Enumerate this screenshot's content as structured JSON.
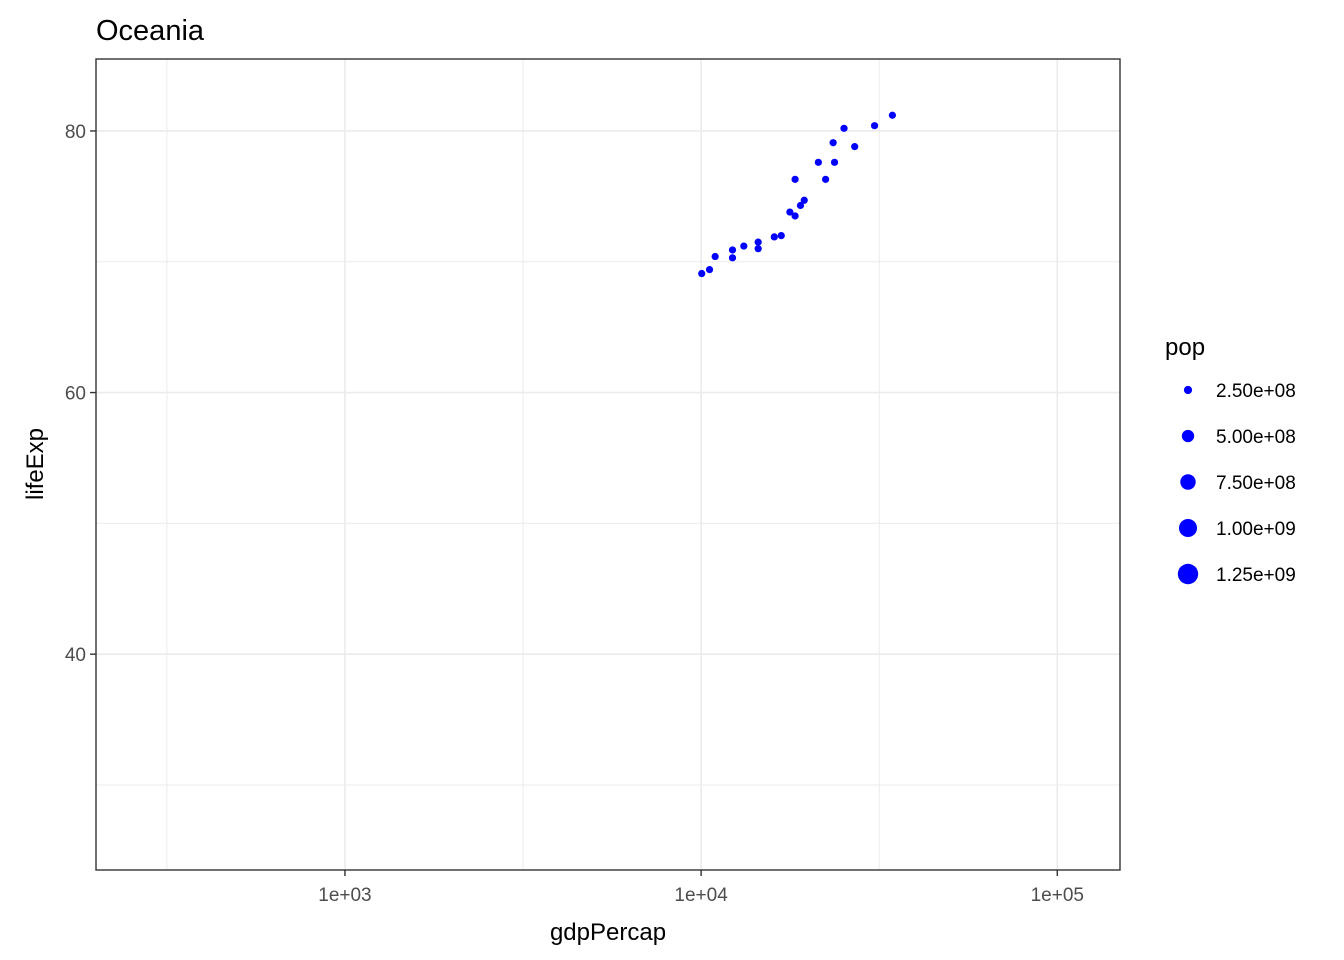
{
  "chart_data": {
    "type": "scatter",
    "title": "Oceania",
    "xlabel": "gdpPercap",
    "ylabel": "lifeExp",
    "x_scale": "log10",
    "xlim": [
      200,
      150000
    ],
    "ylim": [
      23.5,
      85.5
    ],
    "x_ticks": [
      1000,
      10000,
      100000
    ],
    "x_tick_labels": [
      "1e+03",
      "1e+04",
      "1e+05"
    ],
    "y_ticks": [
      40,
      60,
      80
    ],
    "y_tick_labels": [
      "40",
      "60",
      "80"
    ],
    "grid": true,
    "legend": {
      "title": "pop",
      "position": "right",
      "entries": [
        {
          "label": "2.50e+08",
          "value": 250000000
        },
        {
          "label": "5.00e+08",
          "value": 500000000
        },
        {
          "label": "7.50e+08",
          "value": 750000000
        },
        {
          "label": "1.00e+09",
          "value": 1000000000
        },
        {
          "label": "1.25e+09",
          "value": 1250000000
        }
      ]
    },
    "point_color": "#0000ff",
    "series": [
      {
        "points": [
          {
            "x": 10040,
            "y": 69.1,
            "pop": 8700000
          },
          {
            "x": 10560,
            "y": 69.4,
            "pop": 9700000
          },
          {
            "x": 10950,
            "y": 70.4,
            "pop": 2300000
          },
          {
            "x": 12250,
            "y": 70.3,
            "pop": 2500000
          },
          {
            "x": 12250,
            "y": 70.9,
            "pop": 10900000
          },
          {
            "x": 13180,
            "y": 71.2,
            "pop": 2700000
          },
          {
            "x": 14460,
            "y": 71.0,
            "pop": 12000000
          },
          {
            "x": 14460,
            "y": 71.5,
            "pop": 3100000
          },
          {
            "x": 16050,
            "y": 71.9,
            "pop": 3200000
          },
          {
            "x": 16790,
            "y": 72.0,
            "pop": 13200000
          },
          {
            "x": 17750,
            "y": 73.8,
            "pop": 14100000
          },
          {
            "x": 18360,
            "y": 73.5,
            "pop": 15200000
          },
          {
            "x": 18360,
            "y": 76.3,
            "pop": 3400000
          },
          {
            "x": 19010,
            "y": 74.3,
            "pop": 3300000
          },
          {
            "x": 19480,
            "y": 74.7,
            "pop": 16300000
          },
          {
            "x": 21340,
            "y": 77.6,
            "pop": 3700000
          },
          {
            "x": 22360,
            "y": 76.3,
            "pop": 17500000
          },
          {
            "x": 23480,
            "y": 79.1,
            "pop": 3900000
          },
          {
            "x": 23690,
            "y": 77.6,
            "pop": 18600000
          },
          {
            "x": 25190,
            "y": 80.2,
            "pop": 4100000
          },
          {
            "x": 26990,
            "y": 78.8,
            "pop": 19500000
          },
          {
            "x": 30690,
            "y": 80.4,
            "pop": 19500000
          },
          {
            "x": 34440,
            "y": 81.2,
            "pop": 20400000
          }
        ]
      }
    ]
  }
}
